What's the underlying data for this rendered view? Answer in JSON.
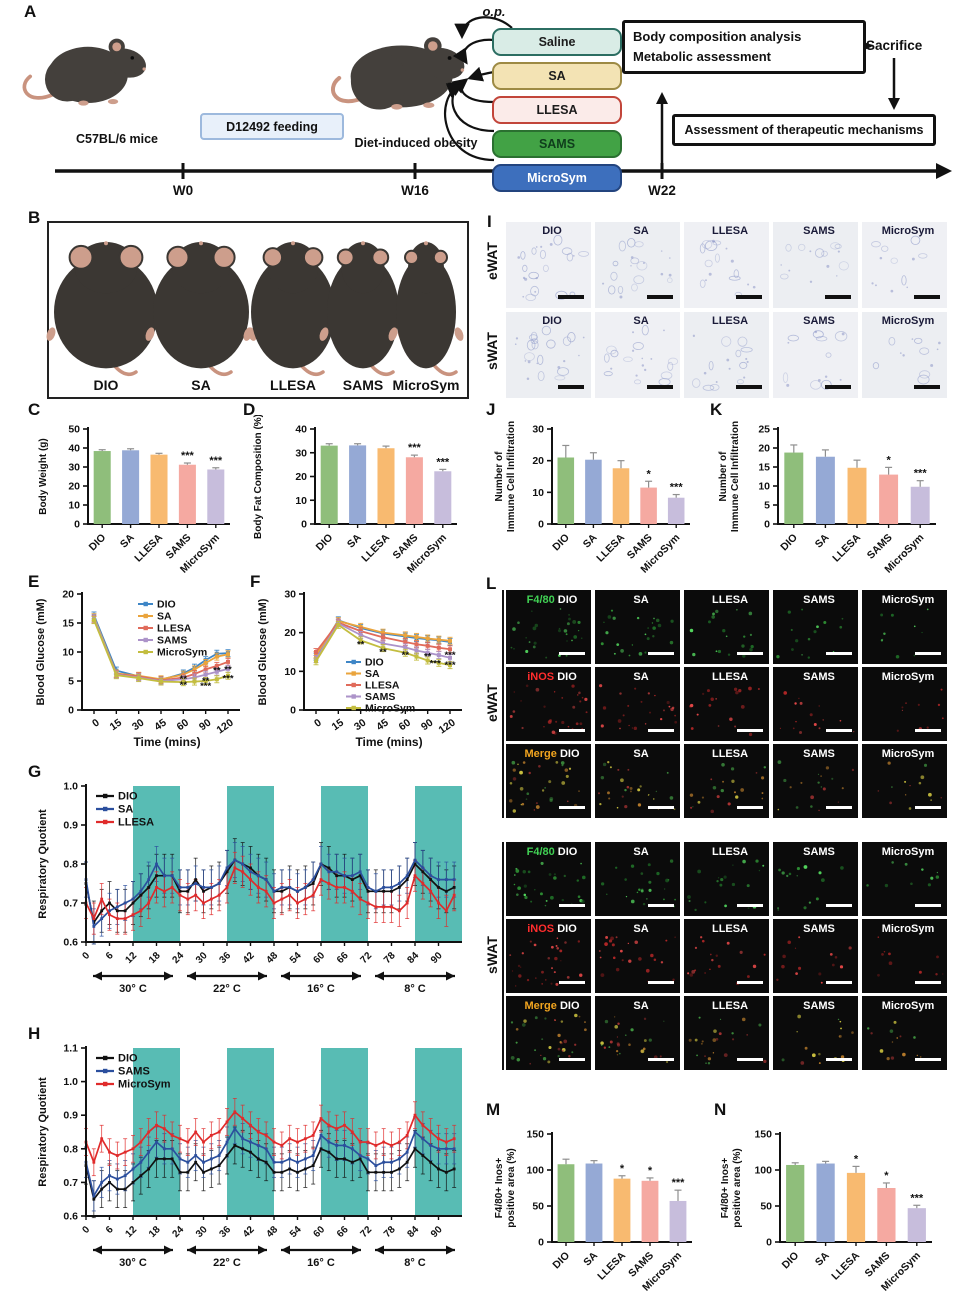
{
  "panel_letters": {
    "a": "A",
    "b": "B",
    "c": "C",
    "d": "D",
    "e": "E",
    "f": "F",
    "g": "G",
    "h": "H",
    "i": "I",
    "j": "J",
    "k": "K",
    "l": "L",
    "m": "M",
    "n": "N"
  },
  "colors": {
    "band": "#58BCB4",
    "axis": "#111111",
    "bar_error": "#8F8F8F"
  },
  "bar_colors": [
    "#8FBE7B",
    "#95A9D5",
    "#F8BA70",
    "#F5A9A1",
    "#C7BDDC"
  ],
  "groups": [
    "DIO",
    "SA",
    "LLESA",
    "SAMS",
    "MicroSym"
  ],
  "panel_a": {
    "injection_label": "o.p.",
    "mouse_left_caption": "C57BL/6 mice",
    "feeding_box": "D12492 feeding",
    "mouse_right_caption": "Diet-induced obesity",
    "treatments": [
      {
        "label": "Saline",
        "bg": "#D9ECE6",
        "border": "#2C6E62",
        "color": "#1C1C1C"
      },
      {
        "label": "SA",
        "bg": "#F3E3B4",
        "border": "#9D8A44",
        "color": "#1C1C1C"
      },
      {
        "label": "LLESA",
        "bg": "#FBEBE9",
        "border": "#C2453A",
        "color": "#1C1C1C"
      },
      {
        "label": "SAMS",
        "bg": "#42A245",
        "border": "#2A7030",
        "color": "#0F3D1C"
      },
      {
        "label": "MicroSym",
        "bg": "#3D6FBD",
        "border": "#23447E",
        "color": "#FFFFFF"
      }
    ],
    "assessment_box_lines": [
      "Body composition analysis",
      "Metabolic assessment"
    ],
    "sacrifice_label": "Sacrifice",
    "mechanism_box": "Assessment of therapeutic mechanisms",
    "timeline_labels": [
      "W0",
      "W16",
      "W22"
    ]
  },
  "panel_b": {
    "groups": [
      "DIO",
      "SA",
      "LLESA",
      "SAMS",
      "MicroSym"
    ]
  },
  "panel_i": {
    "row_labels": [
      "eWAT",
      "sWAT"
    ],
    "columns": [
      "DIO",
      "SA",
      "LLESA",
      "SAMS",
      "MicroSym"
    ]
  },
  "panel_l": {
    "sections": [
      "eWAT",
      "sWAT"
    ],
    "stains": [
      {
        "text": "F4/80",
        "color": "#41D054"
      },
      {
        "text": "iNOS",
        "color": "#FF2D2D"
      },
      {
        "text": "Merge",
        "color": "#F2A51F"
      }
    ],
    "columns": [
      "DIO",
      "SA",
      "LLESA",
      "SAMS",
      "MicroSym"
    ]
  },
  "chart_data": [
    {
      "id": "C",
      "type": "bar",
      "ylabel": "Body Weight (g)",
      "categories": [
        "DIO",
        "SA",
        "LLESA",
        "SAMS",
        "MicroSym"
      ],
      "values": [
        38.4,
        38.8,
        36.5,
        31.2,
        28.7
      ],
      "errors": [
        0.7,
        0.8,
        0.7,
        0.9,
        0.9
      ],
      "sig": [
        "",
        "",
        "",
        "***",
        "***"
      ],
      "ylim": [
        0,
        50
      ],
      "yticks": [
        0,
        10,
        20,
        30,
        40,
        50
      ]
    },
    {
      "id": "D",
      "type": "bar",
      "ylabel": "Body Fat Composition (%)",
      "categories": [
        "DIO",
        "SA",
        "LLESA",
        "SAMS",
        "MicroSym"
      ],
      "values": [
        33.0,
        33.1,
        31.9,
        28.1,
        22.2
      ],
      "errors": [
        0.8,
        0.7,
        0.9,
        0.9,
        0.8
      ],
      "sig": [
        "",
        "",
        "",
        "***",
        "***"
      ],
      "ylim": [
        0,
        40
      ],
      "yticks": [
        0,
        10,
        20,
        30,
        40
      ]
    },
    {
      "id": "J",
      "type": "bar",
      "ylabel_lines": [
        "Number of",
        "Immune Cell Infiltration"
      ],
      "categories": [
        "DIO",
        "SA",
        "LLESA",
        "SAMS",
        "MicroSym"
      ],
      "values": [
        21.0,
        20.3,
        17.6,
        11.5,
        8.3
      ],
      "errors": [
        3.8,
        2.2,
        2.4,
        2.0,
        1.0
      ],
      "sig": [
        "",
        "",
        "",
        "*",
        "***"
      ],
      "ylim": [
        0,
        30
      ],
      "yticks": [
        0,
        10,
        20,
        30
      ]
    },
    {
      "id": "K",
      "type": "bar",
      "ylabel_lines": [
        "Number of",
        "Immune Cell Infiltration"
      ],
      "categories": [
        "DIO",
        "SA",
        "LLESA",
        "SAMS",
        "MicroSym"
      ],
      "values": [
        18.8,
        17.7,
        14.8,
        13.0,
        9.8
      ],
      "errors": [
        2.0,
        1.8,
        2.0,
        1.9,
        1.6
      ],
      "sig": [
        "",
        "",
        "",
        "*",
        "***"
      ],
      "ylim": [
        0,
        25
      ],
      "yticks": [
        0,
        5,
        10,
        15,
        20,
        25
      ]
    },
    {
      "id": "M",
      "type": "bar",
      "ylabel_lines": [
        "F4/80+ Inos+",
        "positive area (%)"
      ],
      "categories": [
        "DIO",
        "SA",
        "LLESA",
        "SAMS",
        "MicroSym"
      ],
      "values": [
        108,
        109,
        88,
        85,
        57
      ],
      "errors": [
        7,
        4,
        4,
        4,
        15
      ],
      "sig": [
        "",
        "",
        "*",
        "*",
        "***"
      ],
      "ylim": [
        0,
        150
      ],
      "yticks": [
        0,
        50,
        100,
        150
      ]
    },
    {
      "id": "N",
      "type": "bar",
      "ylabel_lines": [
        "F4/80+ Inos+",
        "positive area (%)"
      ],
      "categories": [
        "DIO",
        "SA",
        "LLESA",
        "SAMS",
        "MicroSym"
      ],
      "values": [
        107,
        109,
        96,
        75,
        47
      ],
      "errors": [
        3,
        3,
        9,
        7,
        4
      ],
      "sig": [
        "",
        "",
        "*",
        "*",
        "***"
      ],
      "ylim": [
        0,
        150
      ],
      "yticks": [
        0,
        50,
        100,
        150
      ]
    },
    {
      "id": "E",
      "type": "line",
      "ylabel": "Blood Glucose (mM)",
      "xlabel": "Time (mins)",
      "ylim": [
        0,
        20
      ],
      "yticks": [
        0,
        5,
        10,
        15,
        20
      ],
      "xticks": [
        0,
        15,
        30,
        45,
        60,
        90,
        120
      ],
      "x": [
        0,
        15,
        30,
        45,
        60,
        75,
        90,
        105,
        120
      ],
      "err": 0.6,
      "series": [
        {
          "name": "DIO",
          "color": "#3E86C6",
          "values": [
            16.3,
            6.8,
            5.8,
            5.2,
            6.3,
            7.3,
            8.6,
            9.7,
            9.8
          ]
        },
        {
          "name": "SA",
          "color": "#EAA43C",
          "values": [
            16.0,
            6.3,
            5.9,
            5.3,
            6.1,
            7.0,
            8.1,
            9.2,
            9.6
          ]
        },
        {
          "name": "LLESA",
          "color": "#E06B5B",
          "values": [
            15.6,
            6.2,
            5.8,
            5.1,
            5.6,
            6.2,
            7.0,
            7.6,
            8.3
          ]
        },
        {
          "name": "SAMS",
          "color": "#AC93C9",
          "values": [
            15.8,
            6.1,
            5.6,
            5.0,
            5.3,
            5.6,
            6.1,
            6.6,
            7.1
          ]
        },
        {
          "name": "MicroSym",
          "color": "#C3BD3F",
          "values": [
            15.5,
            6.0,
            5.5,
            4.9,
            4.8,
            4.9,
            5.0,
            5.3,
            5.9
          ]
        }
      ],
      "annotations": [
        [
          60,
          4.8,
          "**"
        ],
        [
          60,
          3.8,
          "**"
        ],
        [
          90,
          4.5,
          "**"
        ],
        [
          90,
          3.6,
          "***"
        ],
        [
          105,
          6.3,
          "**"
        ],
        [
          120,
          6.5,
          "**"
        ],
        [
          120,
          4.9,
          "***"
        ]
      ]
    },
    {
      "id": "F",
      "type": "line",
      "ylabel": "Blood Glucose (mM)",
      "xlabel": "Time (mins)",
      "ylim": [
        0,
        30
      ],
      "yticks": [
        0,
        10,
        20,
        30
      ],
      "xticks": [
        0,
        15,
        30,
        45,
        60,
        90,
        120
      ],
      "x": [
        0,
        15,
        30,
        45,
        60,
        75,
        90,
        105,
        120
      ],
      "err": 0.9,
      "series": [
        {
          "name": "DIO",
          "color": "#3E86C6",
          "values": [
            13.8,
            23.2,
            21.2,
            19.8,
            19.0,
            18.6,
            18.3,
            18.0,
            17.6
          ]
        },
        {
          "name": "SA",
          "color": "#EAA43C",
          "values": [
            14.2,
            23.0,
            21.5,
            20.0,
            19.3,
            18.9,
            18.5,
            18.2,
            17.9
          ]
        },
        {
          "name": "LLESA",
          "color": "#E06B5B",
          "values": [
            15.0,
            22.6,
            20.4,
            18.8,
            17.6,
            17.0,
            16.6,
            16.1,
            15.7
          ]
        },
        {
          "name": "SAMS",
          "color": "#AC93C9",
          "values": [
            13.2,
            22.4,
            19.4,
            17.2,
            16.2,
            15.4,
            14.8,
            14.2,
            13.5
          ]
        },
        {
          "name": "MicroSym",
          "color": "#C3BD3F",
          "values": [
            12.6,
            22.0,
            18.0,
            16.0,
            14.8,
            13.8,
            12.8,
            12.2,
            11.6
          ]
        }
      ],
      "annotations": [
        [
          30,
          16.2,
          "**"
        ],
        [
          45,
          14.2,
          "**"
        ],
        [
          60,
          13.4,
          "**"
        ],
        [
          90,
          13.0,
          "**"
        ],
        [
          100,
          11.2,
          "***"
        ],
        [
          120,
          13.4,
          "***"
        ],
        [
          120,
          10.8,
          "***"
        ]
      ]
    },
    {
      "id": "G",
      "type": "rq",
      "ylabel": "Respiratory Quotient",
      "ylim": [
        0.6,
        1.0
      ],
      "yticks": [
        0.6,
        0.7,
        0.8,
        0.9,
        1.0
      ],
      "xticks": [
        0,
        6,
        12,
        18,
        24,
        30,
        36,
        42,
        48,
        54,
        60,
        66,
        72,
        78,
        84,
        90
      ],
      "x_step": 2,
      "x_max": 96,
      "bands": [
        [
          12,
          24
        ],
        [
          36,
          48
        ],
        [
          60,
          72
        ],
        [
          84,
          96
        ]
      ],
      "temp_segments": [
        {
          "range": [
            0,
            24
          ],
          "label": "30° C"
        },
        {
          "range": [
            24,
            48
          ],
          "label": "22° C"
        },
        {
          "range": [
            48,
            72
          ],
          "label": "16° C"
        },
        {
          "range": [
            72,
            96
          ],
          "label": "8° C"
        }
      ],
      "series": [
        {
          "name": "DIO",
          "color": "#111111",
          "err": 0.055,
          "values": [
            0.75,
            0.65,
            0.68,
            0.7,
            0.68,
            0.68,
            0.7,
            0.72,
            0.74,
            0.77,
            0.77,
            0.77,
            0.73,
            0.73,
            0.76,
            0.73,
            0.74,
            0.75,
            0.78,
            0.81,
            0.8,
            0.79,
            0.77,
            0.76,
            0.73,
            0.73,
            0.74,
            0.73,
            0.74,
            0.75,
            0.8,
            0.79,
            0.77,
            0.77,
            0.76,
            0.77,
            0.73,
            0.73,
            0.73,
            0.73,
            0.74,
            0.76,
            0.8,
            0.78,
            0.76,
            0.74,
            0.73,
            0.74
          ]
        },
        {
          "name": "SA",
          "color": "#2B4F9E",
          "err": 0.045,
          "values": [
            0.76,
            0.64,
            0.66,
            0.68,
            0.69,
            0.7,
            0.71,
            0.73,
            0.76,
            0.8,
            0.77,
            0.77,
            0.74,
            0.74,
            0.75,
            0.74,
            0.74,
            0.75,
            0.79,
            0.81,
            0.8,
            0.78,
            0.77,
            0.76,
            0.73,
            0.74,
            0.74,
            0.73,
            0.74,
            0.76,
            0.8,
            0.78,
            0.78,
            0.77,
            0.77,
            0.78,
            0.74,
            0.73,
            0.74,
            0.74,
            0.75,
            0.77,
            0.81,
            0.79,
            0.77,
            0.76,
            0.76,
            0.76
          ]
        },
        {
          "name": "LLESA",
          "color": "#E02B2B",
          "err": 0.04,
          "values": [
            0.7,
            0.66,
            0.71,
            0.67,
            0.66,
            0.66,
            0.67,
            0.68,
            0.7,
            0.74,
            0.73,
            0.74,
            0.72,
            0.71,
            0.72,
            0.7,
            0.71,
            0.72,
            0.74,
            0.79,
            0.78,
            0.76,
            0.74,
            0.73,
            0.7,
            0.71,
            0.72,
            0.7,
            0.71,
            0.72,
            0.76,
            0.75,
            0.74,
            0.74,
            0.73,
            0.71,
            0.7,
            0.69,
            0.69,
            0.69,
            0.68,
            0.7,
            0.77,
            0.75,
            0.73,
            0.7,
            0.68,
            0.72
          ]
        }
      ]
    },
    {
      "id": "H",
      "type": "rq",
      "ylabel": "Respiratory Quotient",
      "ylim": [
        0.6,
        1.1
      ],
      "yticks": [
        0.6,
        0.7,
        0.8,
        0.9,
        1.0,
        1.1
      ],
      "xticks": [
        0,
        6,
        12,
        18,
        24,
        30,
        36,
        42,
        48,
        54,
        60,
        66,
        72,
        78,
        84,
        90
      ],
      "x_step": 2,
      "x_max": 96,
      "bands": [
        [
          12,
          24
        ],
        [
          36,
          48
        ],
        [
          60,
          72
        ],
        [
          84,
          96
        ]
      ],
      "temp_segments": [
        {
          "range": [
            0,
            24
          ],
          "label": "30° C"
        },
        {
          "range": [
            24,
            48
          ],
          "label": "22° C"
        },
        {
          "range": [
            48,
            72
          ],
          "label": "16° C"
        },
        {
          "range": [
            72,
            96
          ],
          "label": "8° C"
        }
      ],
      "series": [
        {
          "name": "DIO",
          "color": "#111111",
          "err": 0.055,
          "values": [
            0.75,
            0.65,
            0.68,
            0.7,
            0.68,
            0.68,
            0.7,
            0.72,
            0.74,
            0.77,
            0.77,
            0.77,
            0.73,
            0.73,
            0.76,
            0.73,
            0.74,
            0.75,
            0.78,
            0.81,
            0.8,
            0.79,
            0.77,
            0.76,
            0.73,
            0.73,
            0.74,
            0.73,
            0.74,
            0.75,
            0.8,
            0.79,
            0.77,
            0.77,
            0.76,
            0.77,
            0.73,
            0.73,
            0.73,
            0.73,
            0.74,
            0.76,
            0.8,
            0.78,
            0.76,
            0.74,
            0.73,
            0.74
          ]
        },
        {
          "name": "SAMS",
          "color": "#2B4F9E",
          "err": 0.045,
          "values": [
            0.76,
            0.66,
            0.7,
            0.72,
            0.71,
            0.72,
            0.74,
            0.76,
            0.79,
            0.82,
            0.8,
            0.8,
            0.77,
            0.76,
            0.78,
            0.76,
            0.77,
            0.78,
            0.82,
            0.86,
            0.83,
            0.82,
            0.81,
            0.8,
            0.76,
            0.76,
            0.77,
            0.76,
            0.77,
            0.78,
            0.84,
            0.82,
            0.81,
            0.81,
            0.8,
            0.78,
            0.77,
            0.75,
            0.76,
            0.76,
            0.77,
            0.79,
            0.85,
            0.83,
            0.81,
            0.8,
            0.8,
            0.8
          ]
        },
        {
          "name": "MicroSym",
          "color": "#E02B2B",
          "err": 0.04,
          "values": [
            0.82,
            0.76,
            0.83,
            0.79,
            0.78,
            0.79,
            0.8,
            0.82,
            0.85,
            0.87,
            0.86,
            0.84,
            0.83,
            0.82,
            0.85,
            0.82,
            0.84,
            0.85,
            0.88,
            0.91,
            0.89,
            0.87,
            0.85,
            0.84,
            0.82,
            0.81,
            0.83,
            0.82,
            0.83,
            0.84,
            0.89,
            0.87,
            0.86,
            0.87,
            0.85,
            0.82,
            0.82,
            0.81,
            0.82,
            0.81,
            0.82,
            0.84,
            0.9,
            0.87,
            0.85,
            0.83,
            0.82,
            0.83
          ]
        }
      ]
    }
  ]
}
